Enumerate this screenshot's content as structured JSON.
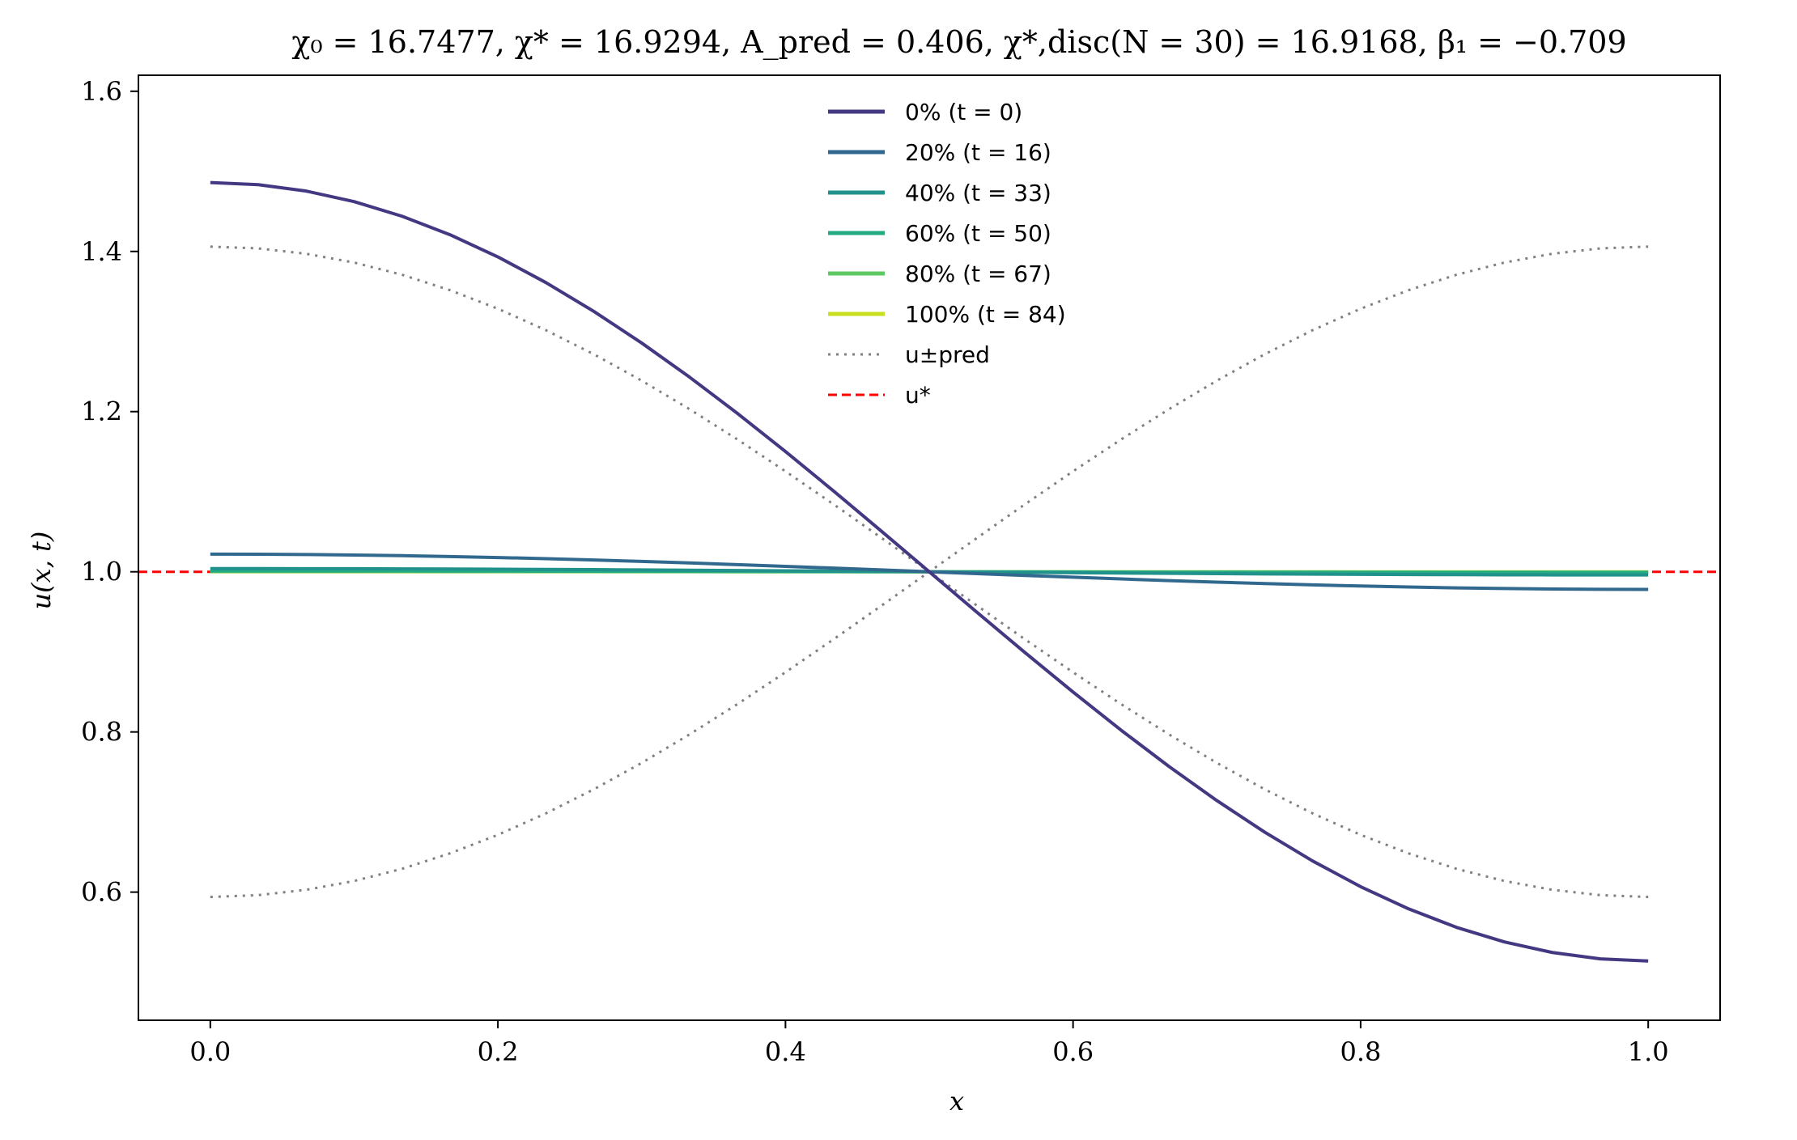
{
  "chart_data": {
    "type": "line",
    "title": "χ₀ = 16.7477,  χ* = 16.9294,  A_pred = 0.406,  χ*,disc(N = 30) = 16.9168,  β₁ = −0.709",
    "xlabel": "x",
    "ylabel": "u(x, t)",
    "xlim": [
      -0.05,
      1.05
    ],
    "ylim": [
      0.44,
      1.62
    ],
    "xticks": [
      0.0,
      0.2,
      0.4,
      0.6,
      0.8,
      1.0
    ],
    "xtick_labels": [
      "0.0",
      "0.2",
      "0.4",
      "0.6",
      "0.8",
      "1.0"
    ],
    "yticks": [
      0.6,
      0.8,
      1.0,
      1.2,
      1.4,
      1.6
    ],
    "ytick_labels": [
      "0.6",
      "0.8",
      "1.0",
      "1.2",
      "1.4",
      "1.6"
    ],
    "grid": false,
    "legend_position": "top-center",
    "n_points": 31,
    "series": [
      {
        "name": "0% (t = 0)",
        "color": "#433982",
        "style": "solid",
        "amplitude": 0.486
      },
      {
        "name": "20% (t = 16)",
        "color": "#31688e",
        "style": "solid",
        "amplitude": 0.022
      },
      {
        "name": "40% (t = 33)",
        "color": "#21918c",
        "style": "solid",
        "amplitude": 0.004
      },
      {
        "name": "60% (t = 50)",
        "color": "#25ab82",
        "style": "solid",
        "amplitude": 0.001
      },
      {
        "name": "80% (t = 67)",
        "color": "#5ec962",
        "style": "solid",
        "amplitude": 0.0003
      },
      {
        "name": "100% (t = 84)",
        "color": "#c8e020",
        "style": "solid",
        "amplitude": 0.0001
      },
      {
        "name": "u±pred",
        "color": "#808080",
        "style": "dotted",
        "amplitude": 0.406,
        "both_signs": true
      },
      {
        "name": "u*",
        "color": "#ff0000",
        "style": "dashed",
        "constant": 1.0
      }
    ]
  }
}
